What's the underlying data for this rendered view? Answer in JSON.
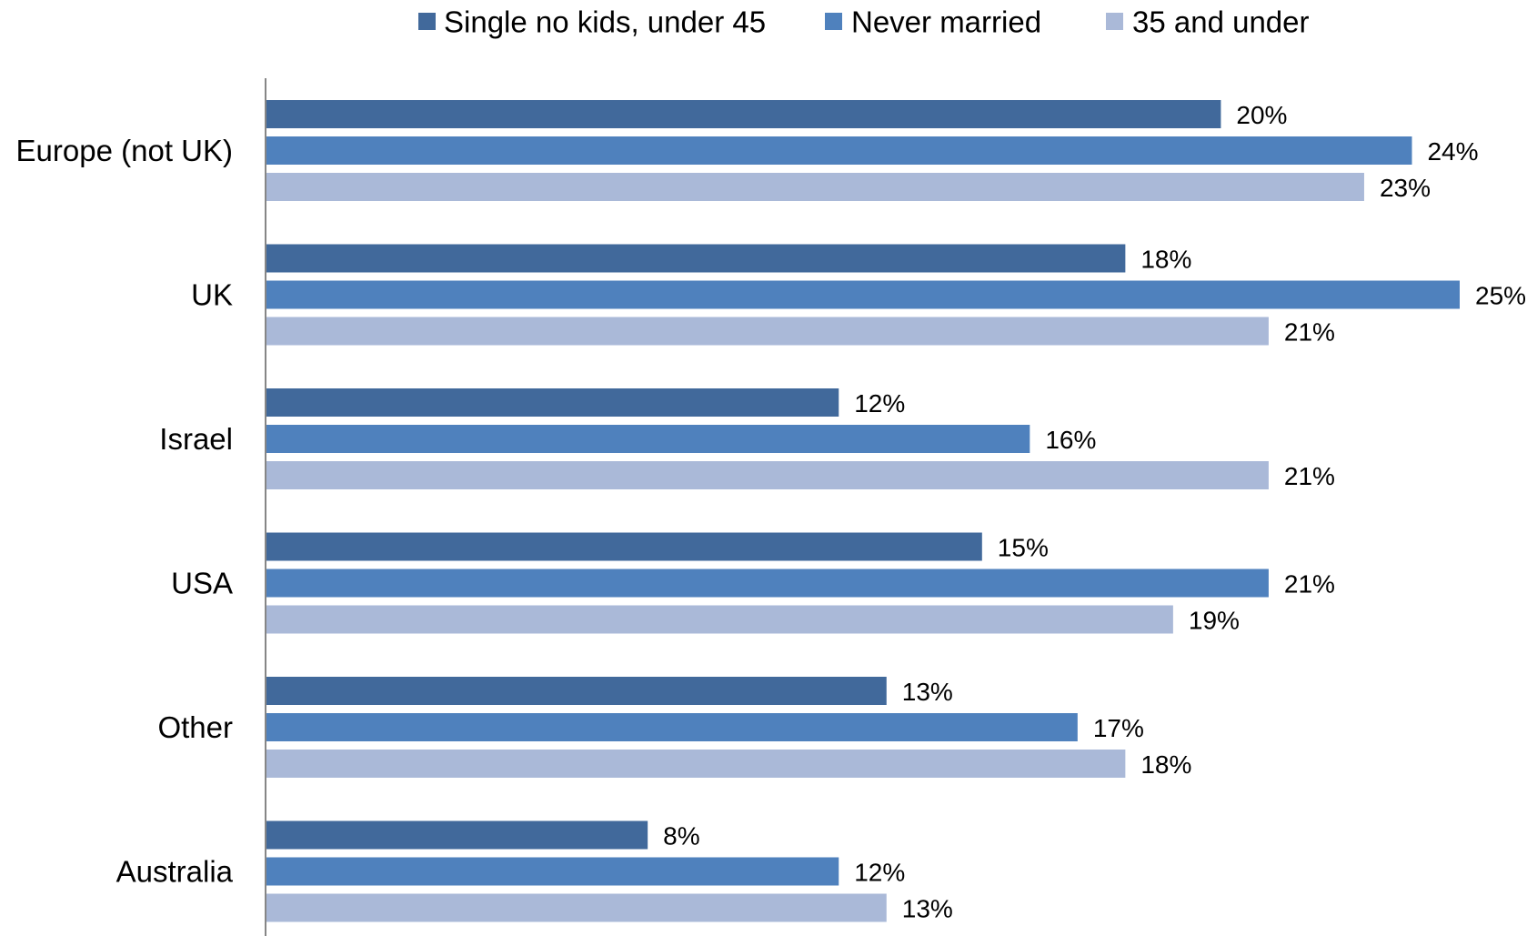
{
  "chart_data": {
    "type": "bar",
    "orientation": "horizontal",
    "title": "",
    "xlabel": "",
    "ylabel": "",
    "xlim": [
      0,
      25
    ],
    "grid": false,
    "legend_position": "top",
    "value_format": "percent",
    "categories": [
      "Europe (not UK)",
      "UK",
      "Israel",
      "USA",
      "Other",
      "Australia"
    ],
    "series": [
      {
        "name": "Single no kids, under 45",
        "color": "#41699B",
        "values": [
          20,
          18,
          12,
          15,
          13,
          8
        ],
        "labels": [
          "20%",
          "18%",
          "12%",
          "15%",
          "13%",
          "8%"
        ]
      },
      {
        "name": "Never married",
        "color": "#4F81BD",
        "values": [
          24,
          25,
          16,
          21,
          17,
          12
        ],
        "labels": [
          "24%",
          "25%",
          "16%",
          "21%",
          "17%",
          "12%"
        ]
      },
      {
        "name": "35 and under",
        "color": "#AAB9D8",
        "values": [
          23,
          21,
          21,
          19,
          18,
          13
        ],
        "labels": [
          "23%",
          "21%",
          "21%",
          "19%",
          "18%",
          "13%"
        ]
      }
    ]
  }
}
